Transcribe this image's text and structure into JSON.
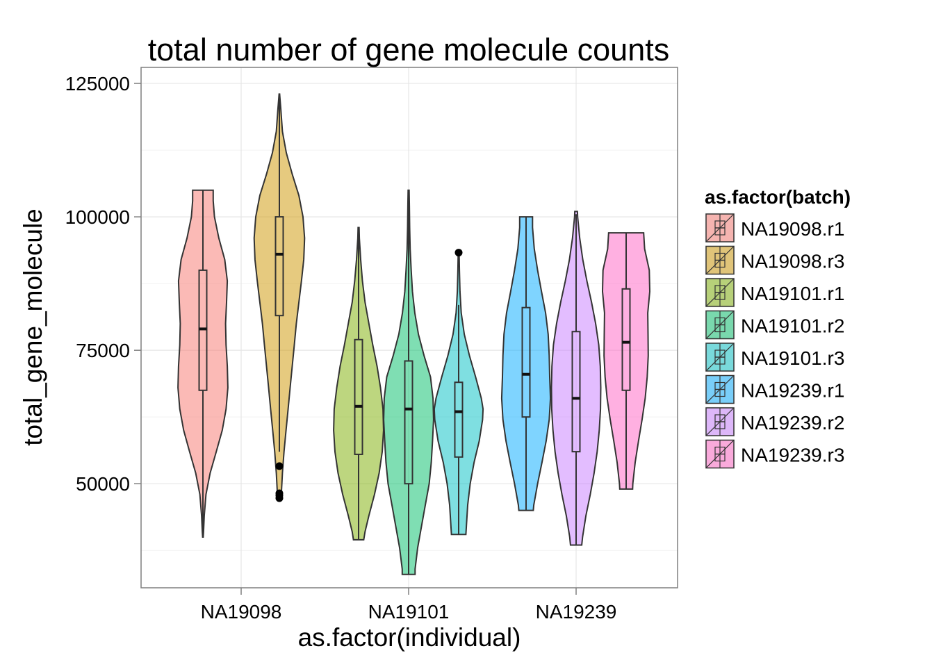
{
  "chart_data": {
    "type": "violin",
    "title": "total number of gene molecule counts",
    "xlabel": "as.factor(individual)",
    "ylabel": "total_gene_molecule",
    "ylim": [
      30500,
      128000
    ],
    "yticks": [
      50000,
      75000,
      100000,
      125000
    ],
    "ytick_labels": [
      "50000",
      "75000",
      "100000",
      "125000"
    ],
    "categories": [
      "NA19098",
      "NA19101",
      "NA19239"
    ],
    "grid": true,
    "legend": {
      "title": "as.factor(batch)",
      "placement": "right",
      "entries": [
        "NA19098.r1",
        "NA19098.r3",
        "NA19101.r1",
        "NA19101.r2",
        "NA19101.r3",
        "NA19239.r1",
        "NA19239.r2",
        "NA19239.r3"
      ]
    },
    "series": [
      {
        "name": "NA19098.r1",
        "individual": "NA19098",
        "color": "#F8766D",
        "box": {
          "min": 40000,
          "q1": 67500,
          "median": 79000,
          "q3": 90000,
          "max": 105000
        },
        "outliers": [],
        "violin_profile": [
          [
            40000,
            0.01
          ],
          [
            41000,
            0.025
          ],
          [
            44000,
            0.05
          ],
          [
            48000,
            0.12
          ],
          [
            52000,
            0.28
          ],
          [
            56000,
            0.52
          ],
          [
            60000,
            0.75
          ],
          [
            64000,
            0.9
          ],
          [
            68000,
            0.97
          ],
          [
            72000,
            0.95
          ],
          [
            76000,
            0.9
          ],
          [
            80000,
            0.88
          ],
          [
            84000,
            0.92
          ],
          [
            88000,
            0.95
          ],
          [
            92000,
            0.85
          ],
          [
            96000,
            0.62
          ],
          [
            100000,
            0.45
          ],
          [
            103000,
            0.4
          ],
          [
            105000,
            0.4
          ]
        ]
      },
      {
        "name": "NA19098.r3",
        "individual": "NA19098",
        "color": "#CD9600",
        "box": {
          "min": 56000,
          "q1": 81500,
          "median": 93000,
          "q3": 100000,
          "max": 122500
        },
        "outliers": [
          53300,
          48200,
          47800,
          47300
        ],
        "violin_profile": [
          [
            47000,
            0.05
          ],
          [
            48500,
            0.08
          ],
          [
            52000,
            0.12
          ],
          [
            56000,
            0.18
          ],
          [
            60000,
            0.26
          ],
          [
            64000,
            0.34
          ],
          [
            68000,
            0.42
          ],
          [
            72000,
            0.5
          ],
          [
            76000,
            0.58
          ],
          [
            80000,
            0.66
          ],
          [
            84000,
            0.76
          ],
          [
            88000,
            0.86
          ],
          [
            92000,
            0.95
          ],
          [
            96000,
            0.98
          ],
          [
            100000,
            0.92
          ],
          [
            104000,
            0.76
          ],
          [
            108000,
            0.5
          ],
          [
            112000,
            0.27
          ],
          [
            116000,
            0.12
          ],
          [
            120000,
            0.06
          ],
          [
            122500,
            0.02
          ],
          [
            123000,
            0.01
          ]
        ]
      },
      {
        "name": "NA19101.r1",
        "individual": "NA19101",
        "color": "#7CAE00",
        "box": {
          "min": 39500,
          "q1": 55500,
          "median": 64500,
          "q3": 77000,
          "max": 97500
        },
        "outliers": [],
        "violin_profile": [
          [
            39500,
            0.2
          ],
          [
            41000,
            0.25
          ],
          [
            44000,
            0.4
          ],
          [
            48000,
            0.62
          ],
          [
            52000,
            0.8
          ],
          [
            56000,
            0.92
          ],
          [
            60000,
            0.97
          ],
          [
            64000,
            0.95
          ],
          [
            68000,
            0.85
          ],
          [
            72000,
            0.72
          ],
          [
            76000,
            0.55
          ],
          [
            80000,
            0.4
          ],
          [
            84000,
            0.25
          ],
          [
            88000,
            0.15
          ],
          [
            92000,
            0.08
          ],
          [
            96000,
            0.03
          ],
          [
            98000,
            0.02
          ]
        ]
      },
      {
        "name": "NA19101.r2",
        "individual": "NA19101",
        "color": "#00BE67",
        "box": {
          "min": 33000,
          "q1": 50000,
          "median": 64000,
          "q3": 73000,
          "max": 104500
        },
        "outliers": [],
        "violin_profile": [
          [
            33000,
            0.25
          ],
          [
            34000,
            0.25
          ],
          [
            38000,
            0.35
          ],
          [
            42000,
            0.5
          ],
          [
            46000,
            0.65
          ],
          [
            50000,
            0.8
          ],
          [
            54000,
            0.88
          ],
          [
            58000,
            0.93
          ],
          [
            62000,
            0.97
          ],
          [
            66000,
            0.95
          ],
          [
            70000,
            0.85
          ],
          [
            74000,
            0.6
          ],
          [
            78000,
            0.38
          ],
          [
            82000,
            0.24
          ],
          [
            86000,
            0.15
          ],
          [
            90000,
            0.1
          ],
          [
            94000,
            0.06
          ],
          [
            98000,
            0.04
          ],
          [
            102000,
            0.03
          ],
          [
            105000,
            0.02
          ]
        ]
      },
      {
        "name": "NA19101.r3",
        "individual": "NA19101",
        "color": "#00BFC4",
        "box": {
          "min": 40500,
          "q1": 55000,
          "median": 63500,
          "q3": 69000,
          "max": 83500
        },
        "outliers": [
          93300
        ],
        "violin_profile": [
          [
            40500,
            0.28
          ],
          [
            42000,
            0.3
          ],
          [
            46000,
            0.35
          ],
          [
            50000,
            0.45
          ],
          [
            54000,
            0.6
          ],
          [
            58000,
            0.8
          ],
          [
            62000,
            0.93
          ],
          [
            64000,
            0.95
          ],
          [
            66000,
            0.88
          ],
          [
            70000,
            0.66
          ],
          [
            74000,
            0.42
          ],
          [
            78000,
            0.22
          ],
          [
            82000,
            0.1
          ],
          [
            86000,
            0.05
          ],
          [
            90000,
            0.03
          ],
          [
            93000,
            0.02
          ]
        ]
      },
      {
        "name": "NA19239.r1",
        "individual": "NA19239",
        "color": "#00A9FF",
        "box": {
          "min": 45000,
          "q1": 62500,
          "median": 70500,
          "q3": 83000,
          "max": 100000
        },
        "outliers": [],
        "violin_profile": [
          [
            45000,
            0.28
          ],
          [
            46000,
            0.3
          ],
          [
            50000,
            0.45
          ],
          [
            54000,
            0.62
          ],
          [
            58000,
            0.78
          ],
          [
            62000,
            0.9
          ],
          [
            66000,
            0.95
          ],
          [
            70000,
            0.92
          ],
          [
            74000,
            0.9
          ],
          [
            78000,
            0.86
          ],
          [
            82000,
            0.76
          ],
          [
            86000,
            0.6
          ],
          [
            90000,
            0.45
          ],
          [
            94000,
            0.32
          ],
          [
            98000,
            0.25
          ],
          [
            100000,
            0.25
          ]
        ]
      },
      {
        "name": "NA19239.r2",
        "individual": "NA19239",
        "color": "#C77CFF",
        "box": {
          "min": 38500,
          "q1": 56000,
          "median": 66000,
          "q3": 78500,
          "max": 100500
        },
        "outliers": [],
        "violin_profile": [
          [
            38500,
            0.22
          ],
          [
            40000,
            0.25
          ],
          [
            44000,
            0.38
          ],
          [
            48000,
            0.55
          ],
          [
            52000,
            0.7
          ],
          [
            56000,
            0.82
          ],
          [
            60000,
            0.9
          ],
          [
            64000,
            0.95
          ],
          [
            68000,
            0.96
          ],
          [
            72000,
            0.94
          ],
          [
            76000,
            0.88
          ],
          [
            80000,
            0.76
          ],
          [
            84000,
            0.6
          ],
          [
            88000,
            0.42
          ],
          [
            92000,
            0.26
          ],
          [
            96000,
            0.14
          ],
          [
            100000,
            0.06
          ],
          [
            101000,
            0.05
          ]
        ]
      },
      {
        "name": "NA19239.r3",
        "individual": "NA19239",
        "color": "#FF61C3",
        "box": {
          "min": 49000,
          "q1": 67500,
          "median": 76500,
          "q3": 86500,
          "max": 97000
        },
        "outliers": [],
        "violin_profile": [
          [
            49000,
            0.25
          ],
          [
            50000,
            0.26
          ],
          [
            54000,
            0.35
          ],
          [
            58000,
            0.48
          ],
          [
            62000,
            0.62
          ],
          [
            66000,
            0.74
          ],
          [
            70000,
            0.82
          ],
          [
            74000,
            0.86
          ],
          [
            78000,
            0.85
          ],
          [
            82000,
            0.84
          ],
          [
            86000,
            0.92
          ],
          [
            90000,
            0.9
          ],
          [
            94000,
            0.72
          ],
          [
            97000,
            0.68
          ]
        ]
      }
    ]
  }
}
